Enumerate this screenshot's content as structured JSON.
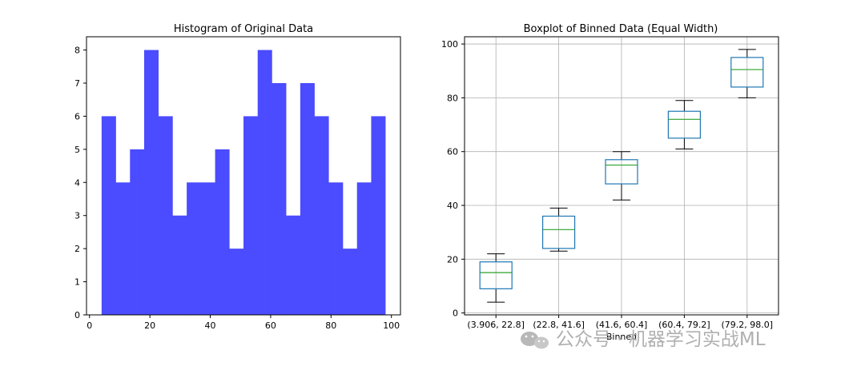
{
  "chart_data": [
    {
      "type": "bar",
      "title": "Histogram of Original Data",
      "xlabel": "",
      "ylabel": "",
      "bar_color": "#4b4bff",
      "bin_edges": [
        4.0,
        8.7,
        13.4,
        18.1,
        22.8,
        27.5,
        32.2,
        36.9,
        41.6,
        46.3,
        51.0,
        55.7,
        60.4,
        65.1,
        69.8,
        74.5,
        79.2,
        83.9,
        88.6,
        93.3,
        98.0
      ],
      "values": [
        6,
        4,
        5,
        8,
        6,
        3,
        4,
        4,
        5,
        2,
        6,
        8,
        7,
        3,
        7,
        6,
        4,
        2,
        4,
        6
      ],
      "xlim": [
        -1,
        103
      ],
      "ylim": [
        0,
        8.4
      ],
      "xticks": [
        0,
        20,
        40,
        60,
        80,
        100
      ],
      "yticks": [
        0,
        1,
        2,
        3,
        4,
        5,
        6,
        7,
        8
      ],
      "grid": false
    },
    {
      "type": "boxplot",
      "title": "Boxplot of Binned Data (Equal Width)",
      "xlabel": "Binned",
      "ylabel": "",
      "categories": [
        "(3.906, 22.8]",
        "(22.8, 41.6]",
        "(41.6, 60.4]",
        "(60.4, 79.2]",
        "(79.2, 98.0]"
      ],
      "boxes": [
        {
          "whislo": 4,
          "q1": 9,
          "med": 15,
          "q3": 19,
          "whishi": 22
        },
        {
          "whislo": 23,
          "q1": 24,
          "med": 31,
          "q3": 36,
          "whishi": 39
        },
        {
          "whislo": 42,
          "q1": 48,
          "med": 55,
          "q3": 57,
          "whishi": 60
        },
        {
          "whislo": 61,
          "q1": 65,
          "med": 72,
          "q3": 75,
          "whishi": 79
        },
        {
          "whislo": 80,
          "q1": 84,
          "med": 90.5,
          "q3": 95,
          "whishi": 98
        }
      ],
      "ylim": [
        -0.7,
        102.7
      ],
      "yticks": [
        0,
        20,
        40,
        60,
        80,
        100
      ],
      "box_color": "#1f77b4",
      "median_color": "#2ca02c",
      "grid": true
    }
  ],
  "watermark": "公众号 · 机器学习实战ML"
}
